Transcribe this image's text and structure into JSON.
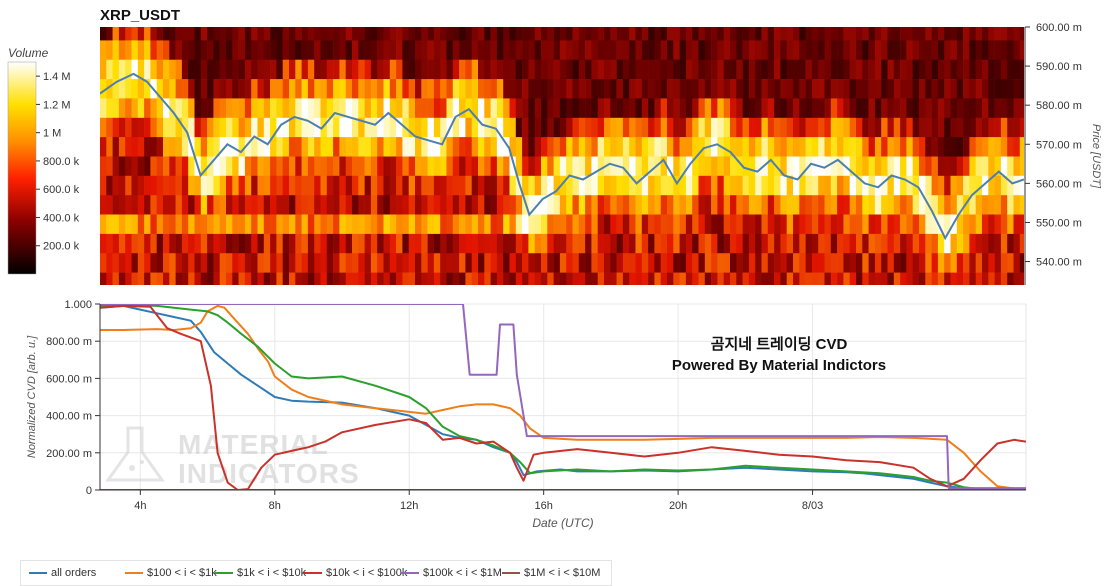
{
  "chart_data": [
    {
      "type": "heatmap",
      "title": "XRP_USDT",
      "colorbar_title": "Volume",
      "colorbar_ticks": [
        "1.4 M",
        "1.2 M",
        "1 M",
        "800.0 k",
        "600.0 k",
        "400.0 k",
        "200.0 k"
      ],
      "colorbar_values": [
        1400000,
        1200000,
        1000000,
        800000,
        600000,
        400000,
        200000
      ],
      "colorbar_range": [
        0,
        1500000
      ],
      "ylabel": "Price [USDT]",
      "ylim": [
        534,
        600
      ],
      "y_ticks": [
        "600.00 m",
        "590.00 m",
        "580.00 m",
        "570.00 m",
        "560.00 m",
        "550.00 m",
        "540.00 m"
      ],
      "y_tick_values": [
        600,
        590,
        580,
        570,
        560,
        550,
        540
      ],
      "xlim": [
        2.8,
        30.35
      ],
      "price_line": {
        "x": [
          2.8,
          3.3,
          3.8,
          4.2,
          4.6,
          5.0,
          5.4,
          5.8,
          6.2,
          6.6,
          7.0,
          7.4,
          7.8,
          8.2,
          8.6,
          9.0,
          9.4,
          9.8,
          10.2,
          10.6,
          11.0,
          11.4,
          11.8,
          12.2,
          12.6,
          13.0,
          13.4,
          13.8,
          14.2,
          14.6,
          15.0,
          15.3,
          15.6,
          16.0,
          16.4,
          16.8,
          17.2,
          17.6,
          18.0,
          18.4,
          18.8,
          19.2,
          19.6,
          20.0,
          20.4,
          20.8,
          21.2,
          21.6,
          22.0,
          22.4,
          22.8,
          23.2,
          23.6,
          24.0,
          24.4,
          24.8,
          25.2,
          25.6,
          26.0,
          26.4,
          26.8,
          27.2,
          27.6,
          28.0,
          28.4,
          28.8,
          29.2,
          29.6,
          30.0,
          30.35
        ],
        "y": [
          583,
          586,
          588,
          586,
          582,
          578,
          573,
          562,
          566,
          570,
          568,
          572,
          570,
          575,
          577,
          576,
          574,
          578,
          577,
          576,
          575,
          578,
          575,
          572,
          571,
          570,
          577,
          579,
          575,
          574,
          569,
          560,
          552,
          556,
          558,
          562,
          561,
          563,
          565,
          564,
          560,
          563,
          566,
          560,
          565,
          569,
          570,
          568,
          564,
          563,
          566,
          562,
          561,
          565,
          564,
          566,
          563,
          560,
          559,
          562,
          561,
          559,
          553,
          546,
          552,
          557,
          560,
          563,
          560,
          561
        ]
      }
    },
    {
      "type": "line",
      "title": "곰지네 트레이딩 CVD",
      "subtitle": "Powered By Material Indictors",
      "watermark": [
        "MATERIAL",
        "INDICATORS"
      ],
      "xlabel": "Date (UTC)",
      "ylabel": "Normalized CVD [arb. u.]",
      "ylim": [
        0,
        1000
      ],
      "y_ticks": [
        "1.000",
        "800.00 m",
        "600.00 m",
        "400.00 m",
        "200.00 m",
        "0"
      ],
      "y_tick_values": [
        1000,
        800,
        600,
        400,
        200,
        0
      ],
      "xlim": [
        2.8,
        30.35
      ],
      "x_ticks": [
        "4h",
        "8h",
        "12h",
        "16h",
        "20h",
        "8/03"
      ],
      "x_tick_values": [
        4,
        8,
        12,
        16,
        20,
        24
      ],
      "grid": true,
      "series": [
        {
          "name": "all orders",
          "color": "#2e7bb8",
          "x": [
            2.8,
            3.5,
            4.0,
            4.5,
            5.0,
            5.5,
            5.8,
            6.2,
            6.6,
            7.0,
            7.5,
            8.0,
            8.5,
            9.0,
            10.0,
            11.0,
            12.0,
            12.5,
            13.0,
            13.5,
            14.0,
            14.5,
            15.0,
            15.2,
            15.4,
            15.8,
            16.5,
            17.0,
            18.0,
            19.0,
            20.0,
            21.0,
            22.0,
            23.0,
            24.0,
            25.0,
            25.5,
            26.0,
            27.0,
            27.5,
            28.0,
            28.5,
            29.0,
            29.5,
            30.0,
            30.35
          ],
          "y": [
            980,
            990,
            970,
            950,
            930,
            910,
            850,
            740,
            680,
            620,
            560,
            500,
            480,
            475,
            470,
            440,
            400,
            350,
            300,
            280,
            270,
            230,
            200,
            150,
            80,
            100,
            110,
            100,
            100,
            105,
            100,
            110,
            120,
            110,
            100,
            95,
            90,
            80,
            60,
            40,
            20,
            10,
            5,
            3,
            2,
            2
          ]
        },
        {
          "name": "$100 < i < $1k",
          "color": "#f07e1a",
          "x": [
            2.8,
            3.5,
            4.5,
            5.0,
            5.5,
            5.8,
            6.0,
            6.3,
            6.5,
            6.8,
            7.2,
            7.5,
            7.8,
            8.0,
            8.5,
            9.0,
            10.0,
            11.0,
            12.0,
            12.5,
            13.0,
            13.5,
            14.0,
            14.5,
            15.0,
            15.3,
            15.6,
            16.0,
            17.0,
            18.0,
            19.0,
            20.0,
            21.0,
            22.0,
            23.0,
            24.0,
            25.0,
            26.0,
            27.0,
            28.0,
            28.5,
            29.0,
            29.5,
            30.35
          ],
          "y": [
            860,
            860,
            865,
            860,
            870,
            900,
            960,
            990,
            980,
            920,
            840,
            760,
            690,
            610,
            540,
            500,
            460,
            440,
            420,
            410,
            430,
            450,
            460,
            460,
            440,
            400,
            330,
            280,
            270,
            270,
            270,
            275,
            280,
            280,
            280,
            280,
            280,
            285,
            280,
            270,
            200,
            100,
            20,
            0
          ]
        },
        {
          "name": "$1k < i < $10k",
          "color": "#2ca02c",
          "x": [
            2.8,
            3.5,
            4.5,
            5.0,
            5.5,
            6.0,
            6.3,
            6.6,
            7.0,
            7.5,
            8.0,
            8.5,
            9.0,
            10.0,
            11.0,
            12.0,
            12.5,
            13.0,
            13.5,
            14.0,
            14.5,
            15.0,
            15.3,
            15.6,
            16.0,
            17.0,
            18.0,
            19.0,
            20.0,
            21.0,
            22.0,
            23.0,
            24.0,
            25.0,
            26.0,
            27.0,
            27.5,
            28.0,
            28.5,
            29.0,
            30.35
          ],
          "y": [
            990,
            995,
            990,
            980,
            970,
            960,
            940,
            900,
            840,
            770,
            680,
            610,
            600,
            610,
            560,
            500,
            440,
            340,
            290,
            270,
            240,
            200,
            150,
            90,
            100,
            110,
            100,
            110,
            105,
            110,
            130,
            120,
            110,
            100,
            90,
            70,
            50,
            40,
            15,
            5,
            0
          ]
        },
        {
          "name": "$10k < i < $100k",
          "color": "#c8322a",
          "x": [
            2.8,
            3.5,
            4.3,
            4.8,
            5.2,
            5.8,
            6.1,
            6.3,
            6.6,
            6.9,
            7.2,
            7.6,
            8.0,
            8.5,
            9.0,
            9.5,
            10.0,
            11.0,
            12.0,
            12.5,
            13.0,
            13.5,
            14.0,
            14.5,
            15.0,
            15.2,
            15.4,
            15.7,
            16.0,
            17.0,
            18.0,
            19.0,
            20.0,
            21.0,
            22.0,
            23.0,
            24.0,
            25.0,
            26.0,
            27.0,
            27.5,
            28.0,
            28.5,
            29.0,
            29.5,
            30.0,
            30.35
          ],
          "y": [
            980,
            990,
            985,
            870,
            840,
            800,
            560,
            200,
            40,
            0,
            5,
            120,
            190,
            210,
            230,
            260,
            310,
            350,
            380,
            360,
            270,
            280,
            250,
            260,
            200,
            120,
            50,
            190,
            200,
            220,
            200,
            180,
            200,
            230,
            210,
            190,
            180,
            160,
            150,
            120,
            60,
            20,
            60,
            160,
            250,
            270,
            260
          ]
        },
        {
          "name": "$100k < i < $1M",
          "color": "#9467bd",
          "x": [
            2.8,
            13.6,
            13.8,
            14.6,
            14.7,
            15.1,
            15.2,
            15.5,
            16.0,
            28.0,
            28.05,
            30.35
          ],
          "y": [
            1000,
            1000,
            620,
            620,
            890,
            890,
            620,
            290,
            290,
            290,
            10,
            10
          ]
        },
        {
          "name": "$1M < i < $10M",
          "color": "#8c564b",
          "x": [
            2.8,
            30.35
          ],
          "y": [
            0,
            0
          ]
        }
      ]
    }
  ]
}
